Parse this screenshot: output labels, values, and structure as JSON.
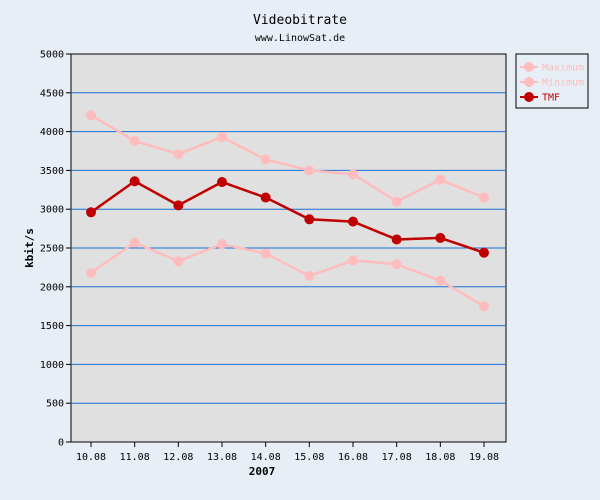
{
  "chart_data": {
    "type": "line",
    "title": "Videobitrate",
    "subtitle": "www.LinowSat.de",
    "xlabel": "2007",
    "ylabel": "kbit/s",
    "ylim": [
      0,
      5000
    ],
    "yticks": [
      0,
      500,
      1000,
      1500,
      2000,
      2500,
      3000,
      3500,
      4000,
      4500,
      5000
    ],
    "categories": [
      "10.08",
      "11.08",
      "12.08",
      "13.08",
      "14.08",
      "15.08",
      "16.08",
      "17.08",
      "18.08",
      "19.08"
    ],
    "grid": "horizontal",
    "legend": "right",
    "series": [
      {
        "name": "Maximum",
        "color": "#ffbcbc",
        "values": [
          4210,
          3880,
          3710,
          3930,
          3640,
          3500,
          3450,
          3100,
          3380,
          3150
        ]
      },
      {
        "name": "Minimum",
        "color": "#ffbcbc",
        "values": [
          2180,
          2570,
          2330,
          2550,
          2430,
          2140,
          2340,
          2290,
          2080,
          1750
        ]
      },
      {
        "name": "TMF",
        "color": "#c00000",
        "values": [
          2960,
          3360,
          3050,
          3350,
          3150,
          2870,
          2840,
          2610,
          2630,
          2440
        ]
      }
    ]
  }
}
